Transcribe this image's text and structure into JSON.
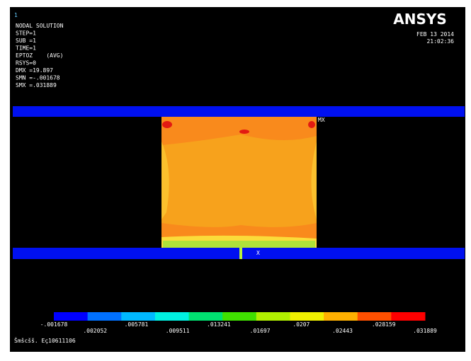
{
  "header": {
    "window_number": "1",
    "lines": [
      "NODAL SOLUTION",
      "STEP=1",
      "SUB =1",
      "TIME=1",
      "EPTOZ    (AVG)",
      "RSYS=0",
      "DMX =19.897",
      "SMN =-.001678",
      "SMX =.031889"
    ],
    "logo": "ANSYS",
    "date": "FEB 13 2014",
    "time": "21:02:36"
  },
  "plot": {
    "max_label": "MX",
    "axis_label": "X"
  },
  "legend": {
    "labels": [
      "-.001678",
      ".002052",
      ".005781",
      ".009511",
      ".013241",
      ".01697",
      ".0207",
      ".02443",
      ".028159",
      ".031889"
    ]
  },
  "footer": {
    "caption": "Šmšcšš. Eç10611106"
  }
}
